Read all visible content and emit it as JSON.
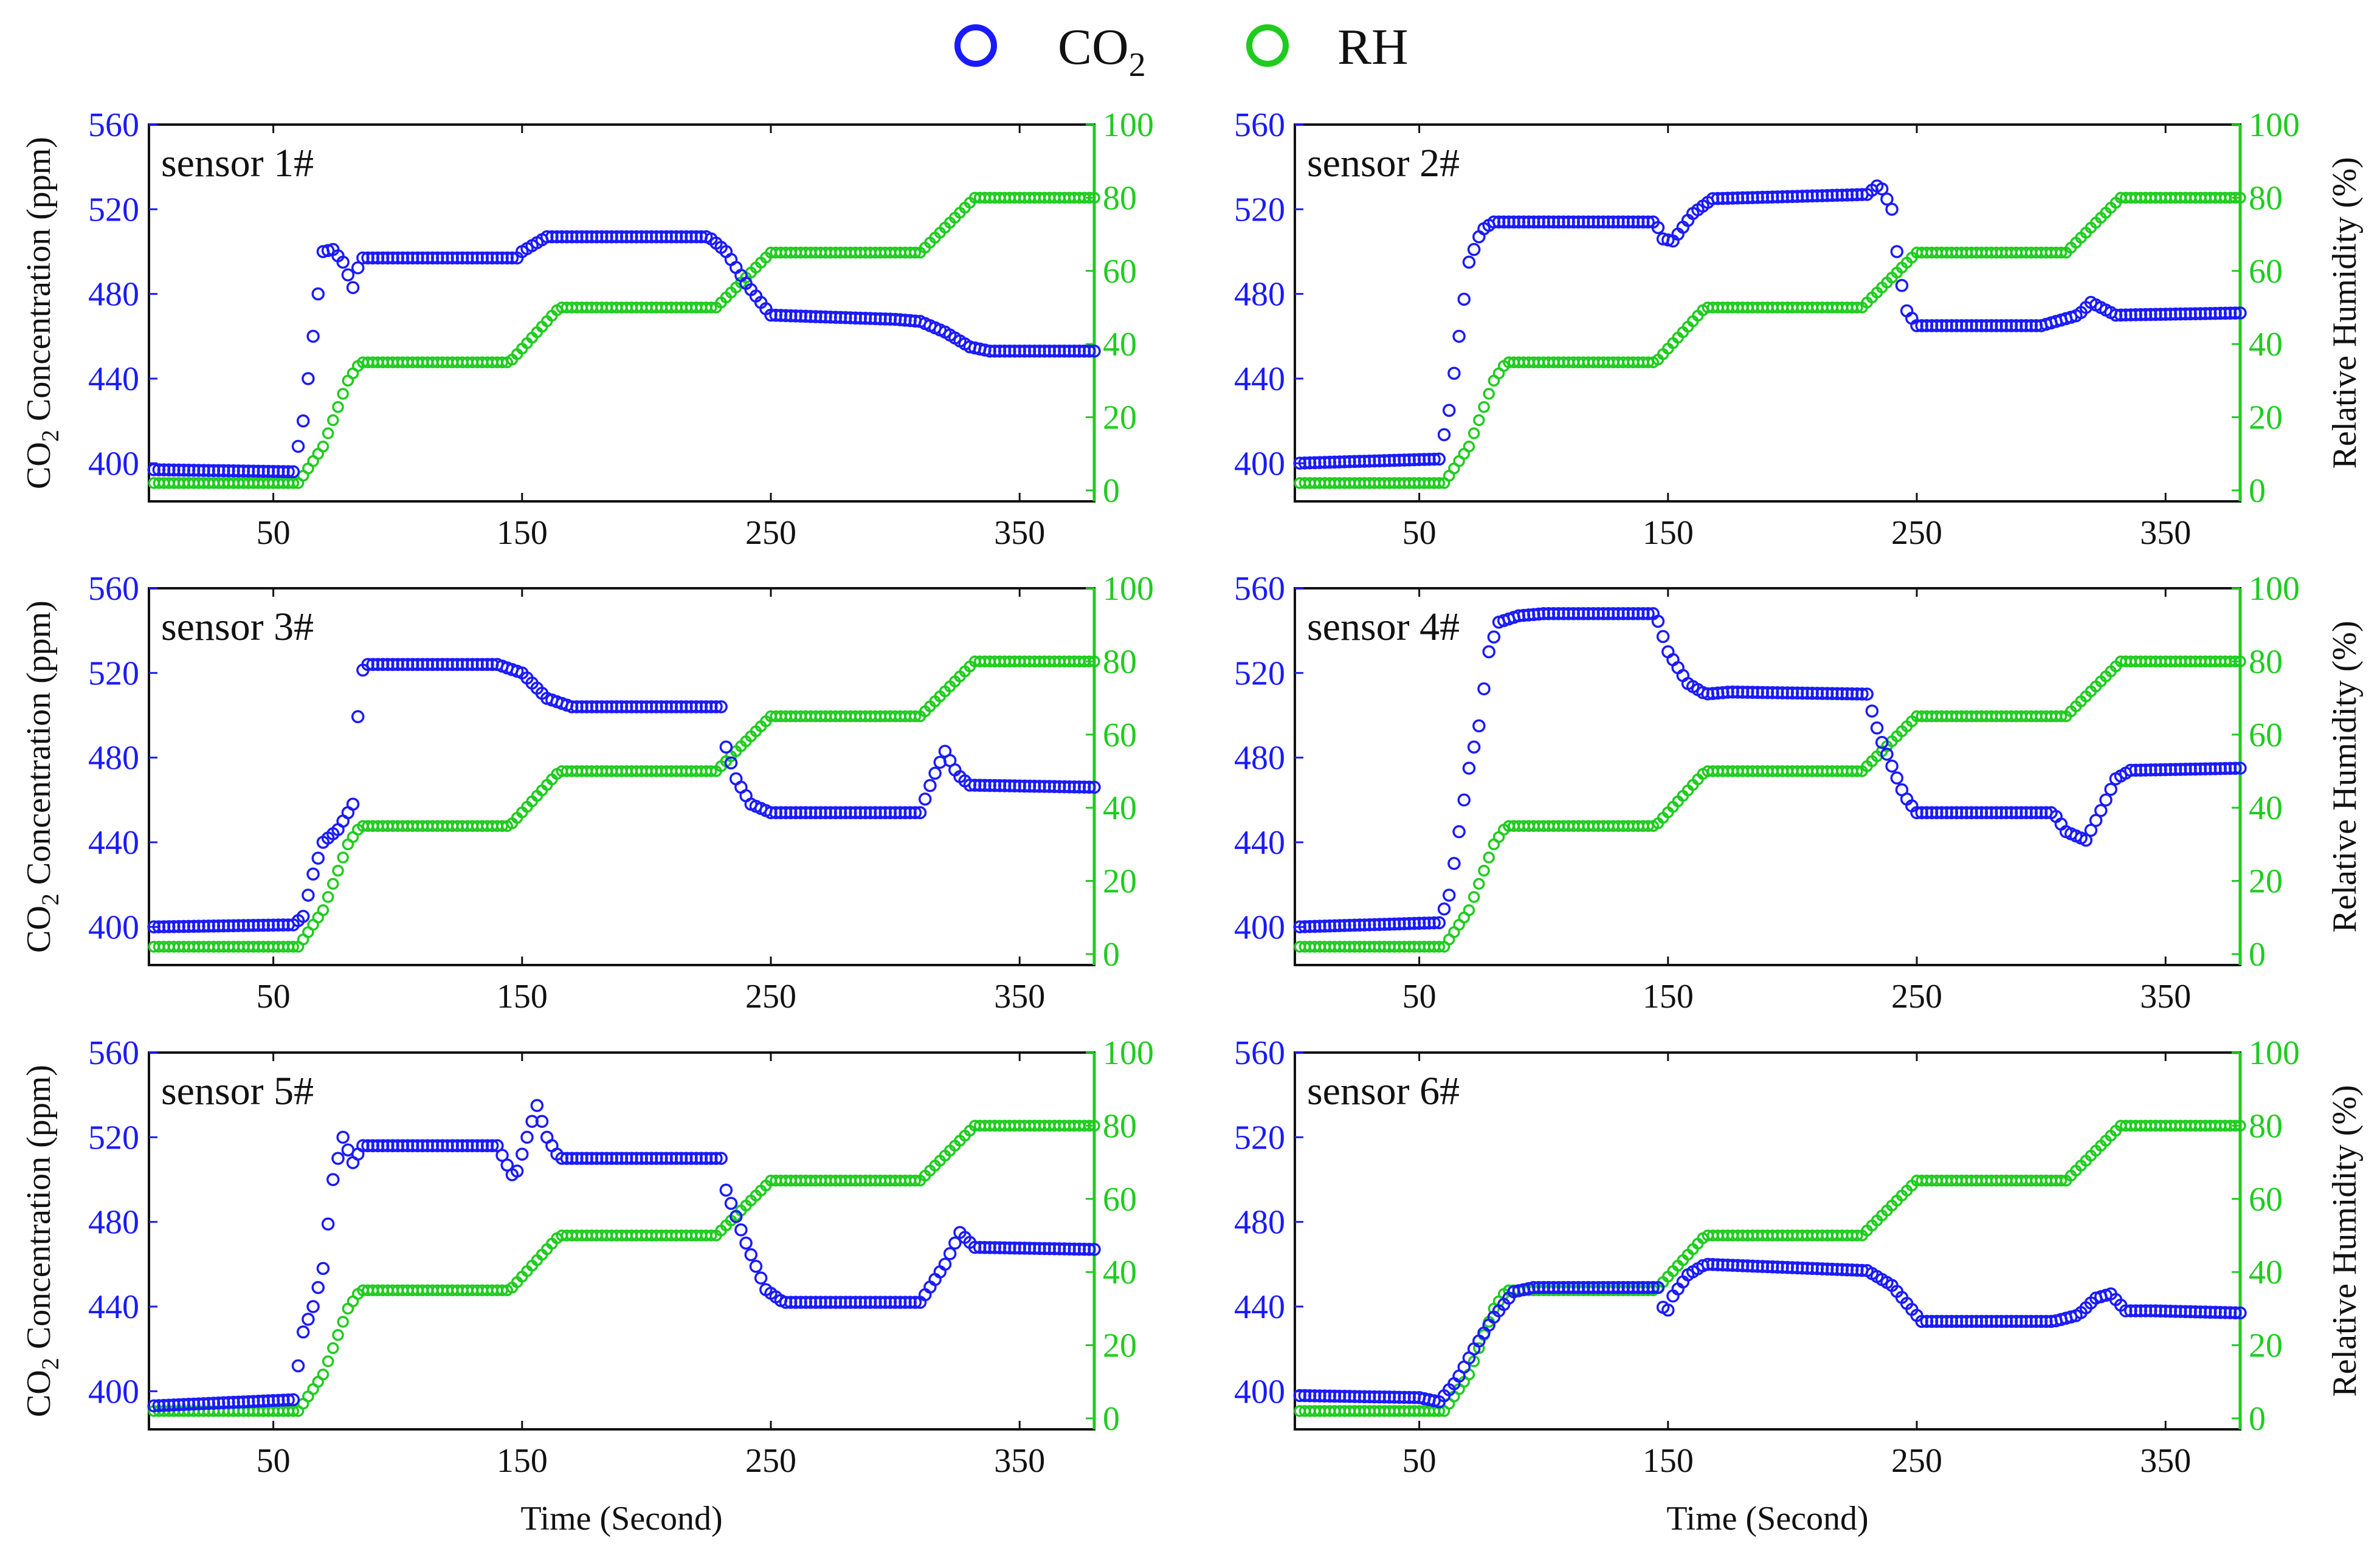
{
  "legend": {
    "co2_label": "CO",
    "co2_sub": "2",
    "rh_label": "RH",
    "co2_color": "#1a1aff",
    "rh_color": "#1ecc1e"
  },
  "axes": {
    "x_label": "Time (Second)",
    "y_left_label_pre": "CO",
    "y_left_label_sub": "2",
    "y_left_label_post": " Concentration (ppm)",
    "y_right_label": "Relative Humidity (%)",
    "x_ticks": [
      "50",
      "150",
      "250",
      "350"
    ],
    "x_tick_values": [
      50,
      150,
      250,
      350
    ],
    "co2_ticks": [
      "400",
      "440",
      "480",
      "520",
      "560"
    ],
    "co2_tick_values": [
      400,
      440,
      480,
      520,
      560
    ],
    "rh_ticks": [
      "0",
      "20",
      "40",
      "60",
      "80",
      "100"
    ],
    "rh_tick_values": [
      0,
      20,
      40,
      60,
      80,
      100
    ]
  },
  "chart_data": {
    "type": "scatter",
    "xlim": [
      0,
      380
    ],
    "co2_ylim": [
      382,
      560
    ],
    "rh_ylim": [
      -3,
      100
    ],
    "rh_series": {
      "name": "RH",
      "x": [
        0,
        60,
        70,
        80,
        85,
        145,
        165,
        228,
        250,
        310,
        332,
        380
      ],
      "y": [
        2,
        2,
        12,
        30,
        35,
        35,
        50,
        50,
        65,
        65,
        80,
        80
      ]
    },
    "panels": [
      {
        "label": "sensor 1#",
        "co2": {
          "x": [
            0,
            58,
            62,
            66,
            70,
            74,
            78,
            82,
            85,
            148,
            150,
            160,
            225,
            232,
            240,
            250,
            300,
            310,
            320,
            330,
            338,
            380
          ],
          "y": [
            397,
            396,
            420,
            460,
            500,
            501,
            495,
            483,
            497,
            497,
            500,
            507,
            507,
            500,
            485,
            470,
            468,
            467,
            462,
            455,
            453,
            453
          ]
        }
      },
      {
        "label": "sensor 2#",
        "co2": {
          "x": [
            0,
            58,
            62,
            66,
            70,
            75,
            80,
            145,
            148,
            152,
            160,
            168,
            230,
            235,
            240,
            243,
            246,
            250,
            300,
            315,
            320,
            330,
            380
          ],
          "y": [
            400,
            402,
            425,
            460,
            495,
            510,
            514,
            514,
            506,
            505,
            518,
            525,
            527,
            532,
            520,
            490,
            472,
            465,
            465,
            470,
            476,
            470,
            471
          ]
        }
      },
      {
        "label": "sensor 3#",
        "co2": {
          "x": [
            0,
            58,
            62,
            66,
            70,
            76,
            82,
            85,
            88,
            140,
            150,
            160,
            170,
            230,
            232,
            236,
            242,
            250,
            310,
            315,
            320,
            325,
            330,
            380
          ],
          "y": [
            400,
            401,
            405,
            425,
            440,
            446,
            458,
            520,
            524,
            524,
            520,
            508,
            504,
            504,
            485,
            470,
            458,
            454,
            454,
            470,
            483,
            472,
            467,
            466
          ]
        }
      },
      {
        "label": "sensor 4#",
        "co2": {
          "x": [
            0,
            58,
            62,
            66,
            70,
            74,
            78,
            82,
            90,
            100,
            145,
            150,
            158,
            165,
            175,
            230,
            235,
            245,
            250,
            305,
            310,
            318,
            324,
            330,
            336,
            380
          ],
          "y": [
            400,
            402,
            415,
            445,
            475,
            495,
            530,
            544,
            547,
            548,
            548,
            530,
            515,
            510,
            511,
            510,
            490,
            462,
            454,
            454,
            445,
            441,
            455,
            470,
            474,
            475
          ]
        }
      },
      {
        "label": "sensor 5#",
        "co2": {
          "x": [
            0,
            58,
            62,
            66,
            70,
            74,
            78,
            82,
            86,
            140,
            147,
            152,
            156,
            160,
            165,
            175,
            230,
            232,
            240,
            248,
            255,
            310,
            320,
            326,
            332,
            380
          ],
          "y": [
            393,
            396,
            428,
            440,
            458,
            500,
            520,
            508,
            516,
            516,
            500,
            520,
            535,
            520,
            510,
            510,
            510,
            495,
            470,
            448,
            442,
            442,
            460,
            475,
            468,
            467
          ]
        }
      },
      {
        "label": "sensor 6#",
        "co2": {
          "x": [
            0,
            50,
            58,
            65,
            72,
            80,
            88,
            96,
            146,
            149,
            152,
            158,
            165,
            230,
            240,
            252,
            305,
            315,
            322,
            328,
            334,
            345,
            380
          ],
          "y": [
            398,
            397,
            395,
            405,
            420,
            435,
            447,
            449,
            449,
            435,
            445,
            455,
            460,
            457,
            450,
            433,
            433,
            436,
            444,
            446,
            438,
            438,
            437
          ]
        }
      }
    ]
  }
}
